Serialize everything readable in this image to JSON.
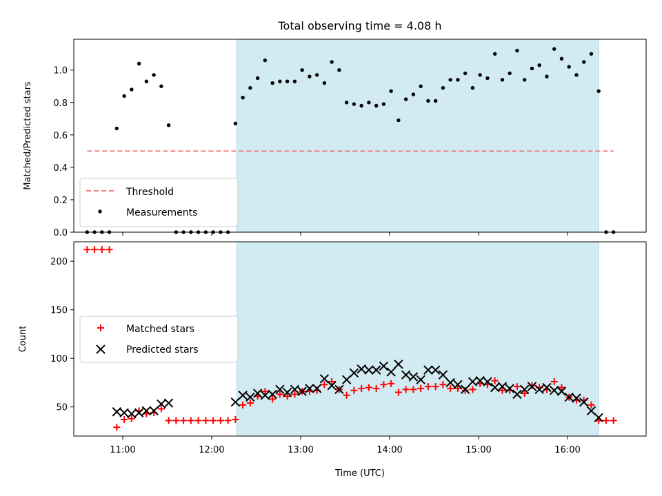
{
  "chart_data": [
    {
      "type": "scatter",
      "title": "Total observing time = 4.08 h",
      "ylabel": "Matched/Predicted stars",
      "xlabel": "",
      "xlim": [
        "10:27",
        "16:53"
      ],
      "ylim": [
        0,
        1.19
      ],
      "y_ticks": [
        0.0,
        0.2,
        0.4,
        0.6,
        0.8,
        1.0
      ],
      "y_tick_labels": [
        "0.0",
        "0.2",
        "0.4",
        "0.6",
        "0.8",
        "1.0"
      ],
      "x_tick_labels": [
        "",
        "",
        "",
        "",
        "",
        ""
      ],
      "shaded_region": {
        "start": "12:17",
        "end": "16:21",
        "color": "#add8e6"
      },
      "legend": {
        "position": "lower-left",
        "entries": [
          "Threshold",
          "Measurements"
        ]
      },
      "threshold": {
        "name": "Threshold",
        "value": 0.5,
        "x_range": [
          "10:36",
          "16:31"
        ],
        "color": "#f08080",
        "style": "dashed"
      },
      "series": [
        {
          "name": "Measurements",
          "color": "#000000",
          "marker": "dot",
          "points": [
            [
              "10:36",
              0.0
            ],
            [
              "10:41",
              0.0
            ],
            [
              "10:46",
              0.0
            ],
            [
              "10:51",
              0.0
            ],
            [
              "10:56",
              0.64
            ],
            [
              "11:01",
              0.84
            ],
            [
              "11:06",
              0.88
            ],
            [
              "11:11",
              1.04
            ],
            [
              "11:16",
              0.93
            ],
            [
              "11:21",
              0.97
            ],
            [
              "11:26",
              0.9
            ],
            [
              "11:31",
              0.66
            ],
            [
              "11:36",
              0.0
            ],
            [
              "11:41",
              0.0
            ],
            [
              "11:46",
              0.0
            ],
            [
              "11:51",
              0.0
            ],
            [
              "11:56",
              0.0
            ],
            [
              "12:01",
              0.0
            ],
            [
              "12:06",
              0.0
            ],
            [
              "12:11",
              0.0
            ],
            [
              "12:16",
              0.67
            ],
            [
              "12:21",
              0.83
            ],
            [
              "12:26",
              0.89
            ],
            [
              "12:31",
              0.95
            ],
            [
              "12:36",
              1.06
            ],
            [
              "12:41",
              0.92
            ],
            [
              "12:46",
              0.93
            ],
            [
              "12:51",
              0.93
            ],
            [
              "12:56",
              0.93
            ],
            [
              "13:01",
              1.0
            ],
            [
              "13:06",
              0.96
            ],
            [
              "13:11",
              0.97
            ],
            [
              "13:16",
              0.92
            ],
            [
              "13:21",
              1.05
            ],
            [
              "13:26",
              1.0
            ],
            [
              "13:31",
              0.8
            ],
            [
              "13:36",
              0.79
            ],
            [
              "13:41",
              0.78
            ],
            [
              "13:46",
              0.8
            ],
            [
              "13:51",
              0.78
            ],
            [
              "13:56",
              0.79
            ],
            [
              "14:01",
              0.87
            ],
            [
              "14:06",
              0.69
            ],
            [
              "14:11",
              0.82
            ],
            [
              "14:16",
              0.85
            ],
            [
              "14:21",
              0.9
            ],
            [
              "14:26",
              0.81
            ],
            [
              "14:31",
              0.81
            ],
            [
              "14:36",
              0.89
            ],
            [
              "14:41",
              0.94
            ],
            [
              "14:46",
              0.94
            ],
            [
              "14:51",
              0.98
            ],
            [
              "14:56",
              0.89
            ],
            [
              "15:01",
              0.97
            ],
            [
              "15:06",
              0.95
            ],
            [
              "15:11",
              1.1
            ],
            [
              "15:16",
              0.94
            ],
            [
              "15:21",
              0.98
            ],
            [
              "15:26",
              1.12
            ],
            [
              "15:31",
              0.94
            ],
            [
              "15:36",
              1.01
            ],
            [
              "15:41",
              1.03
            ],
            [
              "15:46",
              0.96
            ],
            [
              "15:51",
              1.13
            ],
            [
              "15:56",
              1.07
            ],
            [
              "16:01",
              1.02
            ],
            [
              "16:06",
              0.97
            ],
            [
              "16:11",
              1.05
            ],
            [
              "16:16",
              1.1
            ],
            [
              "16:21",
              0.87
            ],
            [
              "16:26",
              0.0
            ],
            [
              "16:31",
              0.0
            ]
          ]
        }
      ]
    },
    {
      "type": "scatter",
      "title": "",
      "xlabel": "Time (UTC)",
      "ylabel": "Count",
      "xlim": [
        "10:27",
        "16:53"
      ],
      "ylim": [
        20,
        220
      ],
      "y_ticks": [
        50,
        100,
        150,
        200
      ],
      "y_tick_labels": [
        "50",
        "100",
        "150",
        "200"
      ],
      "x_ticks": [
        "11:00",
        "12:00",
        "13:00",
        "14:00",
        "15:00",
        "16:00"
      ],
      "x_tick_labels": [
        "11:00",
        "12:00",
        "13:00",
        "14:00",
        "15:00",
        "16:00"
      ],
      "shaded_region": {
        "start": "12:17",
        "end": "16:21",
        "color": "#add8e6"
      },
      "legend": {
        "position": "center-left",
        "entries": [
          "Matched stars",
          "Predicted stars"
        ]
      },
      "series": [
        {
          "name": "Matched stars",
          "color": "#ff0000",
          "marker": "plus",
          "points": [
            [
              "10:36",
              212
            ],
            [
              "10:41",
              212
            ],
            [
              "10:46",
              212
            ],
            [
              "10:51",
              212
            ],
            [
              "10:56",
              29
            ],
            [
              "11:01",
              37
            ],
            [
              "11:06",
              38
            ],
            [
              "11:11",
              46
            ],
            [
              "11:16",
              43
            ],
            [
              "11:21",
              44
            ],
            [
              "11:26",
              48
            ],
            [
              "11:31",
              36
            ],
            [
              "11:36",
              36
            ],
            [
              "11:41",
              36
            ],
            [
              "11:46",
              36
            ],
            [
              "11:51",
              36
            ],
            [
              "11:56",
              36
            ],
            [
              "12:01",
              36
            ],
            [
              "12:06",
              36
            ],
            [
              "12:11",
              36
            ],
            [
              "12:16",
              37
            ],
            [
              "12:21",
              52
            ],
            [
              "12:26",
              54
            ],
            [
              "12:31",
              61
            ],
            [
              "12:36",
              66
            ],
            [
              "12:41",
              58
            ],
            [
              "12:46",
              63
            ],
            [
              "12:51",
              61
            ],
            [
              "12:56",
              63
            ],
            [
              "13:01",
              66
            ],
            [
              "13:06",
              66
            ],
            [
              "13:11",
              67
            ],
            [
              "13:16",
              73
            ],
            [
              "13:21",
              76
            ],
            [
              "13:26",
              68
            ],
            [
              "13:31",
              62
            ],
            [
              "13:36",
              67
            ],
            [
              "13:41",
              69
            ],
            [
              "13:46",
              70
            ],
            [
              "13:51",
              69
            ],
            [
              "13:56",
              73
            ],
            [
              "14:01",
              74
            ],
            [
              "14:06",
              65
            ],
            [
              "14:11",
              68
            ],
            [
              "14:16",
              68
            ],
            [
              "14:21",
              69
            ],
            [
              "14:26",
              71
            ],
            [
              "14:31",
              71
            ],
            [
              "14:36",
              73
            ],
            [
              "14:41",
              69
            ],
            [
              "14:46",
              69
            ],
            [
              "14:51",
              67
            ],
            [
              "14:56",
              68
            ],
            [
              "15:01",
              74
            ],
            [
              "15:06",
              73
            ],
            [
              "15:11",
              77
            ],
            [
              "15:16",
              67
            ],
            [
              "15:21",
              67
            ],
            [
              "15:26",
              71
            ],
            [
              "15:31",
              64
            ],
            [
              "15:36",
              72
            ],
            [
              "15:41",
              70
            ],
            [
              "15:46",
              68
            ],
            [
              "15:51",
              76
            ],
            [
              "15:56",
              70
            ],
            [
              "16:01",
              60
            ],
            [
              "16:06",
              57
            ],
            [
              "16:11",
              57
            ],
            [
              "16:16",
              52
            ],
            [
              "16:21",
              36
            ],
            [
              "16:26",
              36
            ],
            [
              "16:31",
              36
            ]
          ]
        },
        {
          "name": "Predicted stars",
          "color": "#000000",
          "marker": "x",
          "points": [
            [
              "10:56",
              45
            ],
            [
              "11:01",
              44
            ],
            [
              "11:06",
              43
            ],
            [
              "11:11",
              44
            ],
            [
              "11:16",
              46
            ],
            [
              "11:21",
              46
            ],
            [
              "11:26",
              53
            ],
            [
              "11:31",
              54
            ],
            [
              "12:16",
              55
            ],
            [
              "12:21",
              62
            ],
            [
              "12:26",
              60
            ],
            [
              "12:31",
              64
            ],
            [
              "12:36",
              62
            ],
            [
              "12:41",
              63
            ],
            [
              "12:46",
              68
            ],
            [
              "12:51",
              65
            ],
            [
              "12:56",
              68
            ],
            [
              "13:01",
              66
            ],
            [
              "13:06",
              69
            ],
            [
              "13:11",
              69
            ],
            [
              "13:16",
              79
            ],
            [
              "13:21",
              72
            ],
            [
              "13:26",
              68
            ],
            [
              "13:31",
              78
            ],
            [
              "13:36",
              85
            ],
            [
              "13:41",
              89
            ],
            [
              "13:46",
              88
            ],
            [
              "13:51",
              88
            ],
            [
              "13:56",
              92
            ],
            [
              "14:01",
              86
            ],
            [
              "14:06",
              94
            ],
            [
              "14:11",
              83
            ],
            [
              "14:16",
              81
            ],
            [
              "14:21",
              78
            ],
            [
              "14:26",
              88
            ],
            [
              "14:31",
              88
            ],
            [
              "14:36",
              83
            ],
            [
              "14:41",
              75
            ],
            [
              "14:46",
              73
            ],
            [
              "14:51",
              68
            ],
            [
              "14:56",
              76
            ],
            [
              "15:01",
              77
            ],
            [
              "15:06",
              76
            ],
            [
              "15:11",
              70
            ],
            [
              "15:16",
              71
            ],
            [
              "15:21",
              69
            ],
            [
              "15:26",
              63
            ],
            [
              "15:31",
              68
            ],
            [
              "15:36",
              71
            ],
            [
              "15:41",
              68
            ],
            [
              "15:46",
              70
            ],
            [
              "15:51",
              67
            ],
            [
              "15:56",
              66
            ],
            [
              "16:01",
              60
            ],
            [
              "16:06",
              59
            ],
            [
              "16:11",
              55
            ],
            [
              "16:16",
              46
            ],
            [
              "16:21",
              39
            ]
          ]
        }
      ]
    }
  ]
}
